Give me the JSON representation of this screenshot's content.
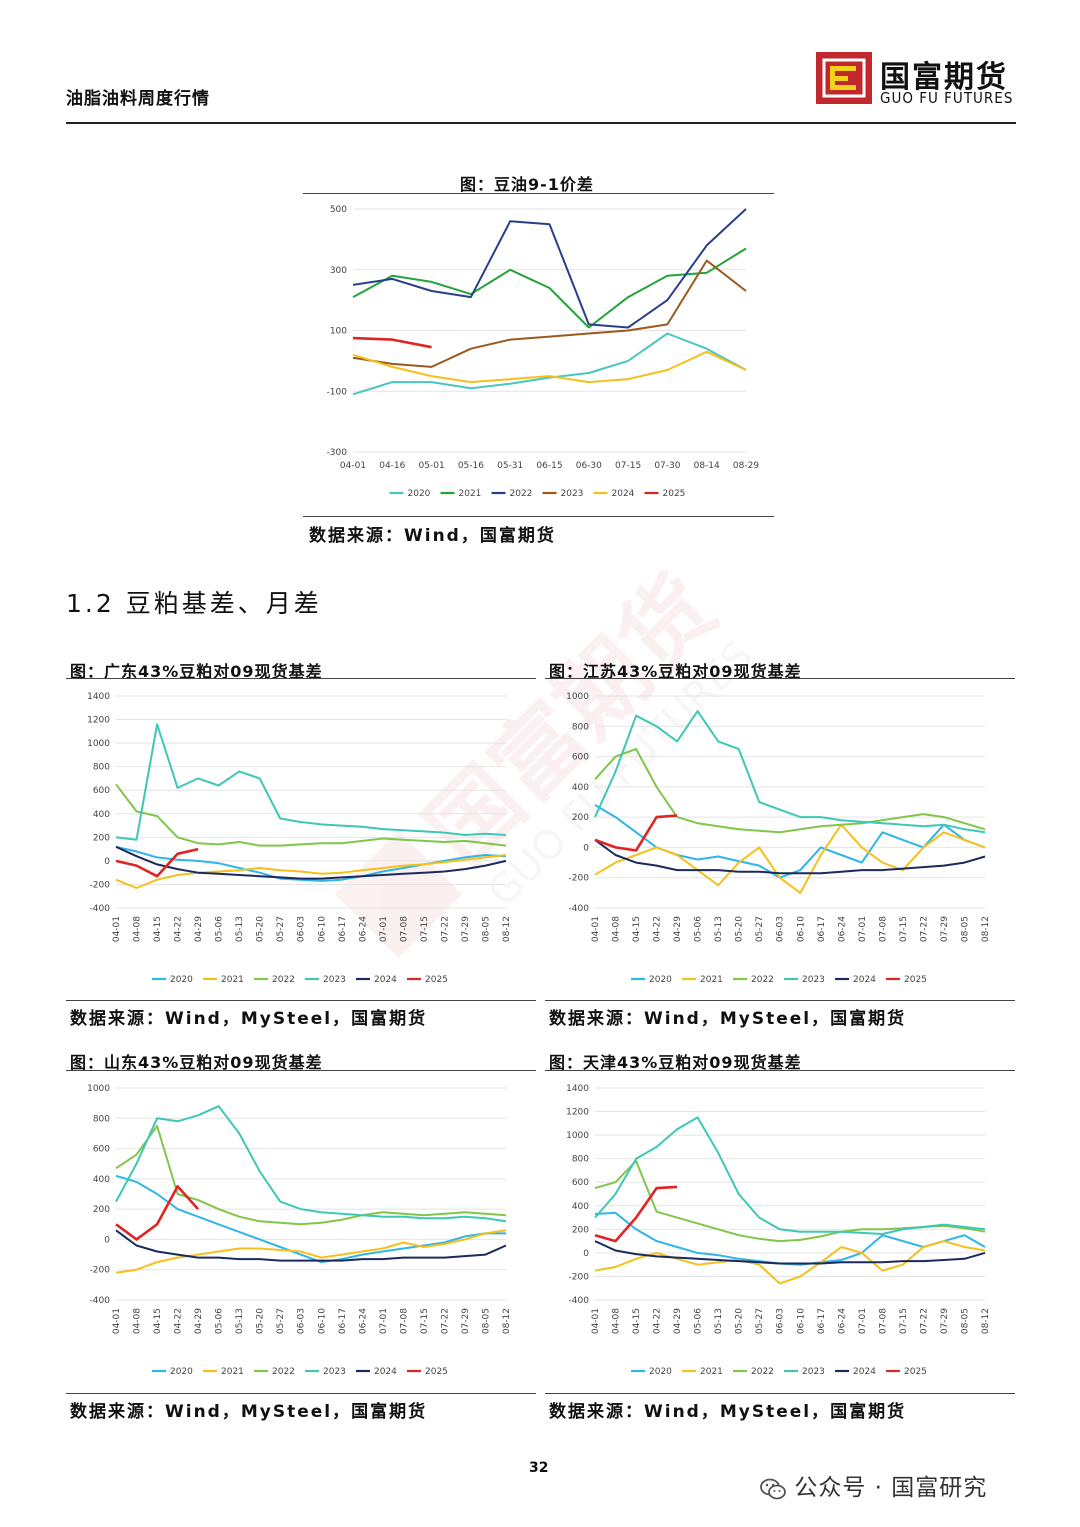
{
  "header": {
    "title": "油脂油料周度行情",
    "logo_cn": "国富期货",
    "logo_en": "GUO FU FUTURES"
  },
  "section_heading": "1.2 豆粕基差、月差",
  "page_number": "32",
  "footer_brand": "公众号 · 国富研究",
  "colors": {
    "2020": "#2fb5e8",
    "2021": "#f5c01a",
    "2022": "#7fc64a",
    "2023": "#3ec7b5",
    "2024": "#1b2a5c",
    "2025": "#e02424"
  },
  "chart_data": [
    {
      "id": "top",
      "type": "line",
      "title": "图：豆油9-1价差",
      "source": "数据来源：Wind，国富期货",
      "ylim": [
        -300,
        500
      ],
      "yticks": [
        500,
        300,
        100,
        -100,
        -300
      ],
      "x_labels": [
        "04-01",
        "04-16",
        "05-01",
        "05-16",
        "05-31",
        "06-15",
        "06-30",
        "07-15",
        "07-30",
        "08-14",
        "08-29"
      ],
      "x_count": 11,
      "series": [
        {
          "name": "2020",
          "color": "#48c7c0",
          "values": [
            -110,
            -70,
            -70,
            -90,
            -75,
            -55,
            -40,
            0,
            90,
            40,
            -30
          ]
        },
        {
          "name": "2021",
          "color": "#22a43a",
          "values": [
            210,
            280,
            260,
            220,
            300,
            240,
            110,
            210,
            280,
            290,
            370
          ]
        },
        {
          "name": "2022",
          "color": "#2a3f8a",
          "values": [
            250,
            270,
            230,
            210,
            460,
            450,
            120,
            110,
            200,
            380,
            500
          ]
        },
        {
          "name": "2023",
          "color": "#9a5a1f",
          "values": [
            10,
            -10,
            -20,
            40,
            70,
            80,
            90,
            100,
            120,
            330,
            230
          ]
        },
        {
          "name": "2024",
          "color": "#f5c01a",
          "values": [
            20,
            -20,
            -50,
            -70,
            -60,
            -50,
            -70,
            -60,
            -30,
            30,
            -30
          ]
        },
        {
          "name": "2025",
          "color": "#e02424",
          "values": [
            75,
            70,
            45,
            null,
            null,
            null,
            null,
            null,
            null,
            null,
            null
          ]
        }
      ]
    },
    {
      "id": "gd",
      "type": "line",
      "title": "图：广东43%豆粕对09现货基差",
      "source": "数据来源：Wind，MySteel，国富期货",
      "ylim": [
        -400,
        1400
      ],
      "yticks": [
        1400,
        1200,
        1000,
        800,
        600,
        400,
        200,
        0,
        -200,
        -400
      ],
      "x_labels": [
        "04-01",
        "04-08",
        "04-15",
        "04-22",
        "04-29",
        "05-06",
        "05-13",
        "05-20",
        "05-27",
        "06-03",
        "06-10",
        "06-17",
        "06-24",
        "07-01",
        "07-08",
        "07-15",
        "07-22",
        "07-29",
        "08-05",
        "08-12"
      ],
      "x_count": 20,
      "series": [
        {
          "name": "2020",
          "color": "#2fb5e8",
          "values": [
            120,
            80,
            30,
            10,
            0,
            -20,
            -60,
            -100,
            -150,
            -160,
            -170,
            -160,
            -130,
            -90,
            -60,
            -30,
            0,
            30,
            50,
            40
          ]
        },
        {
          "name": "2021",
          "color": "#f5c01a",
          "values": [
            -160,
            -230,
            -160,
            -120,
            -100,
            -90,
            -80,
            -60,
            -80,
            -90,
            -110,
            -100,
            -80,
            -60,
            -40,
            -30,
            -10,
            10,
            30,
            50
          ]
        },
        {
          "name": "2022",
          "color": "#7fc64a",
          "values": [
            650,
            420,
            380,
            200,
            150,
            140,
            160,
            130,
            130,
            140,
            150,
            150,
            170,
            190,
            180,
            170,
            160,
            170,
            150,
            130
          ]
        },
        {
          "name": "2023",
          "color": "#3ec7b5",
          "values": [
            200,
            180,
            1160,
            620,
            700,
            640,
            760,
            700,
            360,
            330,
            310,
            300,
            290,
            270,
            260,
            250,
            240,
            220,
            230,
            220
          ]
        },
        {
          "name": "2024",
          "color": "#1b2a5c",
          "values": [
            120,
            40,
            -30,
            -70,
            -100,
            -110,
            -120,
            -130,
            -140,
            -150,
            -150,
            -140,
            -130,
            -120,
            -110,
            -100,
            -90,
            -70,
            -40,
            0
          ]
        },
        {
          "name": "2025",
          "color": "#e02424",
          "values": [
            0,
            -40,
            -130,
            60,
            100,
            null,
            null,
            null,
            null,
            null,
            null,
            null,
            null,
            null,
            null,
            null,
            null,
            null,
            null,
            null
          ]
        }
      ]
    },
    {
      "id": "js",
      "type": "line",
      "title": "图：江苏43%豆粕对09现货基差",
      "source": "数据来源：Wind，MySteel，国富期货",
      "ylim": [
        -400,
        1000
      ],
      "yticks": [
        1000,
        800,
        600,
        400,
        200,
        0,
        -200,
        -400
      ],
      "x_labels": [
        "04-01",
        "04-08",
        "04-15",
        "04-22",
        "04-29",
        "05-06",
        "05-13",
        "05-20",
        "05-27",
        "06-03",
        "06-10",
        "06-17",
        "06-24",
        "07-01",
        "07-08",
        "07-15",
        "07-22",
        "07-29",
        "08-05",
        "08-12"
      ],
      "x_count": 20,
      "series": [
        {
          "name": "2020",
          "color": "#2fb5e8",
          "values": [
            280,
            200,
            100,
            0,
            -50,
            -80,
            -60,
            -90,
            -120,
            -200,
            -150,
            0,
            -50,
            -100,
            100,
            50,
            0,
            150,
            50,
            0
          ]
        },
        {
          "name": "2021",
          "color": "#f5c01a",
          "values": [
            -180,
            -100,
            -50,
            0,
            -50,
            -150,
            -250,
            -100,
            0,
            -200,
            -300,
            -50,
            150,
            0,
            -100,
            -150,
            0,
            100,
            50,
            0
          ]
        },
        {
          "name": "2022",
          "color": "#7fc64a",
          "values": [
            450,
            600,
            650,
            400,
            200,
            160,
            140,
            120,
            110,
            100,
            120,
            140,
            150,
            160,
            180,
            200,
            220,
            200,
            160,
            120
          ]
        },
        {
          "name": "2023",
          "color": "#3ec7b5",
          "values": [
            200,
            500,
            870,
            800,
            700,
            900,
            700,
            650,
            300,
            250,
            200,
            200,
            180,
            170,
            160,
            150,
            140,
            150,
            120,
            100
          ]
        },
        {
          "name": "2024",
          "color": "#1b2a5c",
          "values": [
            50,
            -50,
            -100,
            -120,
            -150,
            -150,
            -150,
            -160,
            -160,
            -170,
            -170,
            -170,
            -160,
            -150,
            -150,
            -140,
            -130,
            -120,
            -100,
            -60
          ]
        },
        {
          "name": "2025",
          "color": "#e02424",
          "values": [
            50,
            0,
            -20,
            200,
            210,
            null,
            null,
            null,
            null,
            null,
            null,
            null,
            null,
            null,
            null,
            null,
            null,
            null,
            null,
            null
          ]
        }
      ]
    },
    {
      "id": "sd",
      "type": "line",
      "title": "图：山东43%豆粕对09现货基差",
      "source": "数据来源：Wind，MySteel，国富期货",
      "ylim": [
        -400,
        1000
      ],
      "yticks": [
        1000,
        800,
        600,
        400,
        200,
        0,
        -200,
        -400
      ],
      "x_labels": [
        "04-01",
        "04-08",
        "04-15",
        "04-22",
        "04-29",
        "05-06",
        "05-13",
        "05-20",
        "05-27",
        "06-03",
        "06-10",
        "06-17",
        "06-24",
        "07-01",
        "07-08",
        "07-15",
        "07-22",
        "07-29",
        "08-05",
        "08-12"
      ],
      "x_count": 20,
      "series": [
        {
          "name": "2020",
          "color": "#2fb5e8",
          "values": [
            420,
            380,
            300,
            200,
            150,
            100,
            50,
            0,
            -50,
            -100,
            -150,
            -130,
            -100,
            -80,
            -60,
            -40,
            -20,
            20,
            40,
            40
          ]
        },
        {
          "name": "2021",
          "color": "#f5c01a",
          "values": [
            -220,
            -200,
            -150,
            -120,
            -100,
            -80,
            -60,
            -60,
            -70,
            -80,
            -120,
            -100,
            -80,
            -60,
            -20,
            -50,
            -30,
            0,
            40,
            60
          ]
        },
        {
          "name": "2022",
          "color": "#7fc64a",
          "values": [
            470,
            560,
            750,
            300,
            260,
            200,
            150,
            120,
            110,
            100,
            110,
            130,
            160,
            180,
            170,
            160,
            170,
            180,
            170,
            160
          ]
        },
        {
          "name": "2023",
          "color": "#3ec7b5",
          "values": [
            250,
            500,
            800,
            780,
            820,
            880,
            700,
            450,
            250,
            200,
            180,
            170,
            160,
            150,
            150,
            140,
            140,
            150,
            140,
            120
          ]
        },
        {
          "name": "2024",
          "color": "#1b2a5c",
          "values": [
            60,
            -40,
            -80,
            -100,
            -120,
            -120,
            -130,
            -130,
            -140,
            -140,
            -140,
            -140,
            -130,
            -130,
            -120,
            -120,
            -120,
            -110,
            -100,
            -40
          ]
        },
        {
          "name": "2025",
          "color": "#e02424",
          "values": [
            100,
            0,
            100,
            350,
            200,
            null,
            null,
            null,
            null,
            null,
            null,
            null,
            null,
            null,
            null,
            null,
            null,
            null,
            null,
            null
          ]
        }
      ]
    },
    {
      "id": "tj",
      "type": "line",
      "title": "图：天津43%豆粕对09现货基差",
      "source": "数据来源：Wind，MySteel，国富期货",
      "ylim": [
        -400,
        1400
      ],
      "yticks": [
        1400,
        1200,
        1000,
        800,
        600,
        400,
        200,
        0,
        -200,
        -400
      ],
      "x_labels": [
        "04-01",
        "04-08",
        "04-15",
        "04-22",
        "04-29",
        "05-06",
        "05-13",
        "05-20",
        "05-27",
        "06-03",
        "06-10",
        "06-17",
        "06-24",
        "07-01",
        "07-08",
        "07-15",
        "07-22",
        "07-29",
        "08-05",
        "08-12"
      ],
      "x_count": 20,
      "series": [
        {
          "name": "2020",
          "color": "#2fb5e8",
          "values": [
            330,
            340,
            200,
            100,
            50,
            0,
            -20,
            -50,
            -70,
            -90,
            -100,
            -80,
            -60,
            0,
            150,
            100,
            50,
            100,
            150,
            50
          ]
        },
        {
          "name": "2021",
          "color": "#f5c01a",
          "values": [
            -150,
            -120,
            -50,
            0,
            -50,
            -100,
            -80,
            -60,
            -100,
            -260,
            -200,
            -80,
            50,
            0,
            -150,
            -100,
            50,
            100,
            50,
            20
          ]
        },
        {
          "name": "2022",
          "color": "#7fc64a",
          "values": [
            550,
            600,
            780,
            350,
            300,
            250,
            200,
            150,
            120,
            100,
            110,
            140,
            180,
            200,
            200,
            210,
            220,
            230,
            210,
            180
          ]
        },
        {
          "name": "2023",
          "color": "#3ec7b5",
          "values": [
            300,
            500,
            800,
            900,
            1050,
            1150,
            850,
            500,
            300,
            200,
            180,
            180,
            180,
            170,
            160,
            200,
            220,
            240,
            220,
            200
          ]
        },
        {
          "name": "2024",
          "color": "#1b2a5c",
          "values": [
            100,
            20,
            -10,
            -30,
            -40,
            -50,
            -60,
            -70,
            -80,
            -90,
            -90,
            -90,
            -80,
            -80,
            -80,
            -70,
            -70,
            -60,
            -50,
            0
          ]
        },
        {
          "name": "2025",
          "color": "#e02424",
          "values": [
            150,
            100,
            300,
            550,
            560,
            null,
            null,
            null,
            null,
            null,
            null,
            null,
            null,
            null,
            null,
            null,
            null,
            null,
            null,
            null
          ]
        }
      ]
    }
  ]
}
